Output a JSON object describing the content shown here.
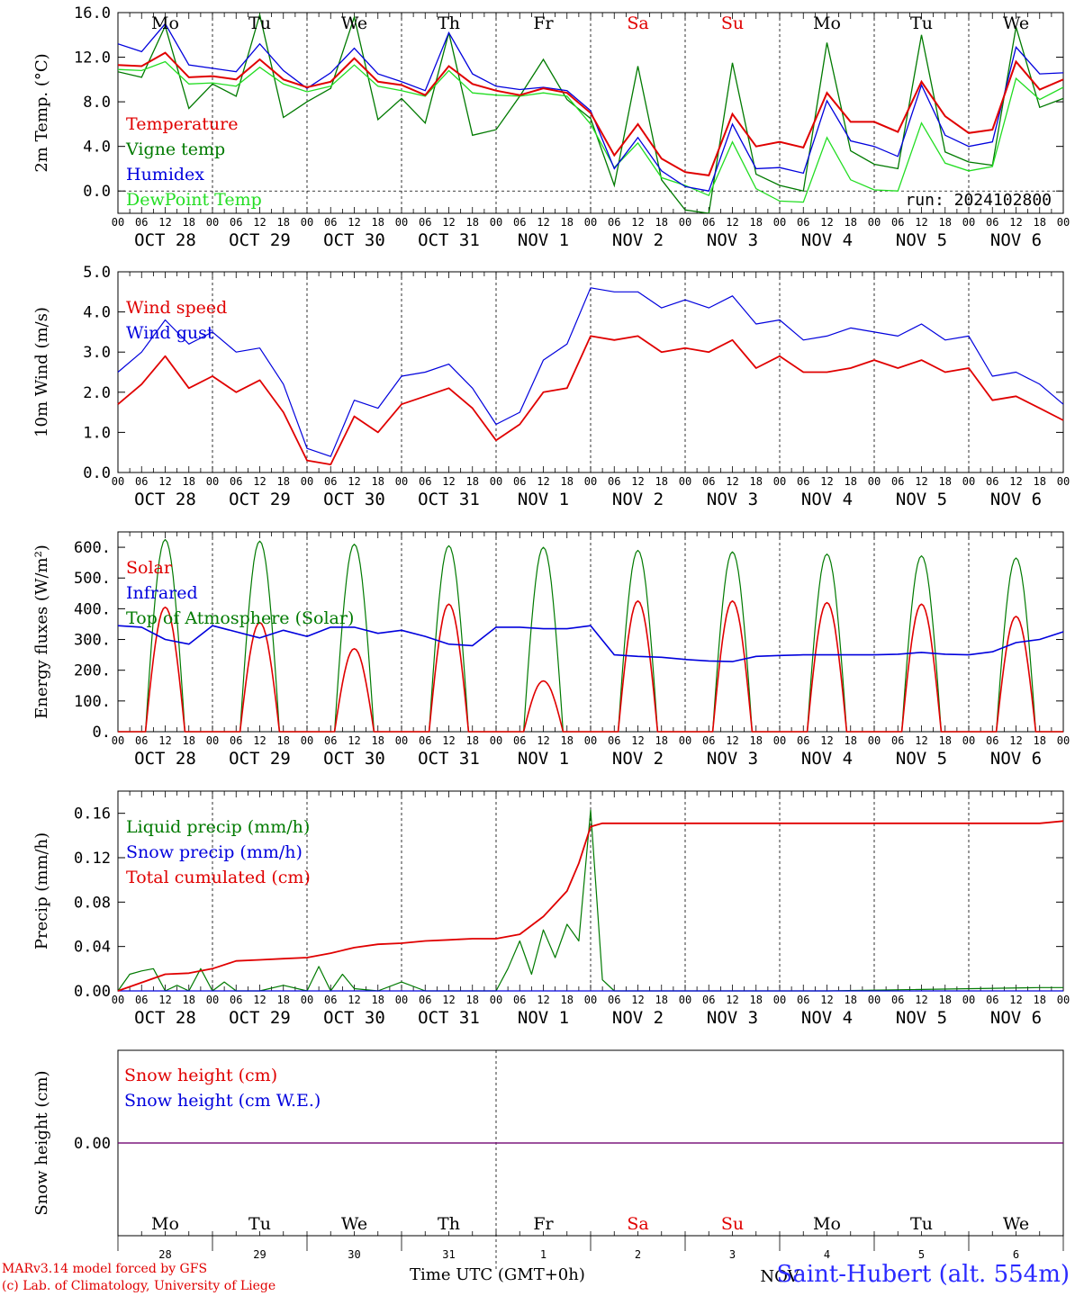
{
  "run_label": "run: 2024102800",
  "x_axis": {
    "hour_ticks": [
      "00",
      "06",
      "12",
      "18"
    ],
    "final_tick": "00",
    "dates": [
      "OCT 28",
      "OCT 29",
      "OCT 30",
      "OCT 31",
      "NOV  1",
      "NOV  2",
      "NOV  3",
      "NOV  4",
      "NOV  5",
      "NOV  6"
    ],
    "weekdays": [
      "Mo",
      "Tu",
      "We",
      "Th",
      "Fr",
      "Sa",
      "Su",
      "Mo",
      "Tu",
      "We"
    ],
    "day_numbers": [
      "28",
      "29",
      "30",
      "31",
      "1",
      "2",
      "3",
      "4",
      "5",
      "6"
    ],
    "weekend_indices": [
      5,
      6
    ],
    "bottom_label": "Time UTC (GMT+0h)",
    "bottom_month": "NOV"
  },
  "footer": {
    "model": "MARv3.14 model forced by GFS",
    "credit": "(c) Lab. of Climatology, University of Liege",
    "station": "Saint-Hubert (alt. 554m)"
  },
  "colors": {
    "red": "#e00000",
    "green": "#007a00",
    "blue": "#0000dd",
    "lightgreen": "#22dd22",
    "purple": "#7a3a9a",
    "weekend": "#e00000"
  },
  "chart_data": [
    {
      "type": "line",
      "ylabel": "2m Temp. (°C)",
      "ylim": [
        -2,
        16
      ],
      "yticks": [
        "0.0",
        "4.0",
        "8.0",
        "12.0",
        "16.0"
      ],
      "ytick_values": [
        0,
        4,
        8,
        12,
        16
      ],
      "dashed_zero": true,
      "x": [
        0,
        6,
        12,
        18,
        24,
        30,
        36,
        42,
        48,
        54,
        60,
        66,
        72,
        78,
        84,
        90,
        96,
        102,
        108,
        114,
        120,
        126,
        132,
        138,
        144,
        150,
        156,
        162,
        168,
        174,
        180,
        186,
        192,
        198,
        204,
        210,
        216,
        222,
        228,
        234,
        240
      ],
      "series": [
        {
          "name": "Temperature",
          "color": "red",
          "values": [
            11.3,
            11.2,
            12.4,
            10.2,
            10.3,
            10.0,
            11.8,
            10.0,
            9.3,
            9.8,
            11.9,
            9.8,
            9.5,
            8.6,
            11.2,
            9.6,
            9.0,
            8.6,
            9.2,
            8.8,
            7.0,
            3.2,
            6.0,
            2.9,
            1.7,
            1.4,
            6.9,
            4.0,
            4.4,
            3.9,
            8.8,
            6.2,
            6.2,
            5.3,
            9.8,
            6.7,
            5.2,
            5.5,
            11.6,
            9.1,
            10.0
          ]
        },
        {
          "name": "Vigne temp",
          "color": "green",
          "values": [
            10.7,
            10.2,
            14.8,
            7.4,
            9.6,
            8.5,
            15.8,
            6.6,
            8.0,
            9.2,
            15.6,
            6.4,
            8.3,
            6.1,
            14.2,
            5.0,
            5.5,
            8.5,
            11.8,
            8.2,
            6.5,
            0.5,
            11.2,
            1.0,
            -1.7,
            -2.0,
            11.5,
            1.5,
            0.5,
            0.0,
            13.3,
            3.6,
            2.4,
            2.0,
            14.0,
            3.5,
            2.6,
            2.3,
            14.7,
            7.5,
            8.3
          ]
        },
        {
          "name": "Humidex",
          "color": "blue",
          "values": [
            13.2,
            12.5,
            15.0,
            11.3,
            11.0,
            10.7,
            13.2,
            10.8,
            9.2,
            10.6,
            12.8,
            10.5,
            9.8,
            9.0,
            14.2,
            10.5,
            9.4,
            9.1,
            9.3,
            9.0,
            7.2,
            2.0,
            4.8,
            1.8,
            0.4,
            0.0,
            6.0,
            2.0,
            2.1,
            1.6,
            8.1,
            4.5,
            4.0,
            3.1,
            9.5,
            5.0,
            4.0,
            4.4,
            12.9,
            10.5,
            10.6
          ]
        },
        {
          "name": "DewPoint Temp",
          "color": "lightgreen",
          "values": [
            10.9,
            10.8,
            11.6,
            9.6,
            9.7,
            9.4,
            11.1,
            9.6,
            8.9,
            9.4,
            11.3,
            9.4,
            9.0,
            8.5,
            10.8,
            8.8,
            8.6,
            8.5,
            8.8,
            8.5,
            6.0,
            2.1,
            4.3,
            1.2,
            0.5,
            -0.4,
            4.4,
            0.2,
            -0.9,
            -1.0,
            4.8,
            1.0,
            0.1,
            0.0,
            6.1,
            2.5,
            1.8,
            2.2,
            10.1,
            8.2,
            9.3
          ]
        }
      ]
    },
    {
      "type": "line",
      "ylabel": "10m Wind (m/s)",
      "ylim": [
        0,
        5
      ],
      "yticks": [
        "0.0",
        "1.0",
        "2.0",
        "3.0",
        "4.0",
        "5.0"
      ],
      "ytick_values": [
        0,
        1,
        2,
        3,
        4,
        5
      ],
      "x": [
        0,
        6,
        12,
        18,
        24,
        30,
        36,
        42,
        48,
        54,
        60,
        66,
        72,
        78,
        84,
        90,
        96,
        102,
        108,
        114,
        120,
        126,
        132,
        138,
        144,
        150,
        156,
        162,
        168,
        174,
        180,
        186,
        192,
        198,
        204,
        210,
        216,
        222,
        228,
        234,
        240
      ],
      "series": [
        {
          "name": "Wind speed",
          "color": "red",
          "values": [
            1.7,
            2.2,
            2.9,
            2.1,
            2.4,
            2.0,
            2.3,
            1.5,
            0.3,
            0.2,
            1.4,
            1.0,
            1.7,
            1.9,
            2.1,
            1.6,
            0.8,
            1.2,
            2.0,
            2.1,
            3.4,
            3.3,
            3.4,
            3.0,
            3.1,
            3.0,
            3.3,
            2.6,
            2.9,
            2.5,
            2.5,
            2.6,
            2.8,
            2.6,
            2.8,
            2.5,
            2.6,
            1.8,
            1.9,
            1.6,
            1.3
          ]
        },
        {
          "name": "Wind gust",
          "color": "blue",
          "values": [
            2.5,
            3.0,
            3.8,
            3.2,
            3.5,
            3.0,
            3.1,
            2.2,
            0.6,
            0.4,
            1.8,
            1.6,
            2.4,
            2.5,
            2.7,
            2.1,
            1.2,
            1.5,
            2.8,
            3.2,
            4.6,
            4.5,
            4.5,
            4.1,
            4.3,
            4.1,
            4.4,
            3.7,
            3.8,
            3.3,
            3.4,
            3.6,
            3.5,
            3.4,
            3.7,
            3.3,
            3.4,
            2.4,
            2.5,
            2.2,
            1.7
          ]
        }
      ]
    },
    {
      "type": "line",
      "ylabel": "Energy fluxes (W/m²)",
      "ylim": [
        0,
        650
      ],
      "yticks": [
        "0.",
        "100.",
        "200.",
        "300.",
        "400.",
        "500.",
        "600."
      ],
      "ytick_values": [
        0,
        100,
        200,
        300,
        400,
        500,
        600
      ],
      "daylight_hours": [
        7,
        17
      ],
      "series": [
        {
          "name": "Solar",
          "color": "red",
          "daily_peaks": [
            405,
            355,
            270,
            415,
            165,
            425,
            425,
            420,
            415,
            375
          ]
        },
        {
          "name": "Infrared",
          "color": "blue",
          "x": [
            0,
            6,
            12,
            18,
            24,
            30,
            36,
            42,
            48,
            54,
            60,
            66,
            72,
            78,
            84,
            90,
            96,
            102,
            108,
            114,
            120,
            126,
            132,
            138,
            144,
            150,
            156,
            162,
            168,
            174,
            180,
            186,
            192,
            198,
            204,
            210,
            216,
            222,
            228,
            234,
            240
          ],
          "values": [
            345,
            340,
            300,
            285,
            345,
            325,
            305,
            330,
            310,
            340,
            340,
            320,
            330,
            310,
            285,
            280,
            340,
            340,
            335,
            335,
            345,
            250,
            245,
            242,
            235,
            230,
            228,
            245,
            248,
            250,
            250,
            250,
            250,
            252,
            258,
            252,
            250,
            260,
            290,
            300,
            325
          ]
        },
        {
          "name": "Top of Atmosphere (Solar)",
          "color": "green",
          "daily_peaks": [
            625,
            620,
            610,
            605,
            600,
            590,
            585,
            578,
            572,
            565
          ]
        }
      ]
    },
    {
      "type": "line",
      "ylabel": "Precip (mm/h)",
      "ylim": [
        0,
        0.18
      ],
      "yticks": [
        "0.00",
        "0.04",
        "0.08",
        "0.12",
        "0.16"
      ],
      "ytick_values": [
        0,
        0.04,
        0.08,
        0.12,
        0.16
      ],
      "series": [
        {
          "name": "Liquid precip (mm/h)",
          "color": "green",
          "x": [
            0,
            3,
            6,
            9,
            12,
            15,
            18,
            21,
            24,
            27,
            30,
            36,
            42,
            48,
            51,
            54,
            57,
            60,
            66,
            72,
            78,
            84,
            90,
            96,
            99,
            102,
            105,
            108,
            111,
            114,
            117,
            120,
            123,
            126,
            132,
            180,
            234,
            240
          ],
          "values": [
            0.0,
            0.015,
            0.018,
            0.02,
            0.0,
            0.005,
            0.0,
            0.02,
            0.0,
            0.008,
            0.0,
            0.0,
            0.005,
            0.0,
            0.022,
            0.0,
            0.015,
            0.002,
            0.0,
            0.008,
            0.0,
            0.0,
            0.0,
            0.0,
            0.02,
            0.045,
            0.015,
            0.055,
            0.03,
            0.06,
            0.045,
            0.163,
            0.01,
            0.0,
            0.0,
            0.0,
            0.003,
            0.003
          ]
        },
        {
          "name": "Snow precip (mm/h)",
          "color": "blue",
          "x": [
            0,
            240
          ],
          "values": [
            0,
            0
          ]
        },
        {
          "name": "Total cumulated (cm)",
          "color": "red",
          "x": [
            0,
            12,
            18,
            24,
            30,
            36,
            42,
            48,
            54,
            60,
            66,
            72,
            78,
            84,
            90,
            96,
            102,
            108,
            114,
            117,
            120,
            123,
            126,
            150,
            180,
            210,
            234,
            240
          ],
          "values": [
            0.0,
            0.015,
            0.016,
            0.02,
            0.027,
            0.028,
            0.029,
            0.03,
            0.034,
            0.039,
            0.042,
            0.043,
            0.045,
            0.046,
            0.047,
            0.047,
            0.051,
            0.067,
            0.09,
            0.115,
            0.148,
            0.151,
            0.151,
            0.151,
            0.151,
            0.151,
            0.151,
            0.153
          ]
        }
      ]
    },
    {
      "type": "line",
      "ylabel": "Snow height (cm)",
      "ytick_values": [
        0
      ],
      "yticks": [
        "0.00"
      ],
      "series": [
        {
          "name": "Snow height (cm)",
          "color": "red",
          "x": [
            0,
            240
          ],
          "values": [
            0,
            0
          ]
        },
        {
          "name": "Snow height (cm W.E.)",
          "color": "blue",
          "x": [
            0,
            240
          ],
          "values": [
            0,
            0
          ]
        }
      ]
    }
  ]
}
